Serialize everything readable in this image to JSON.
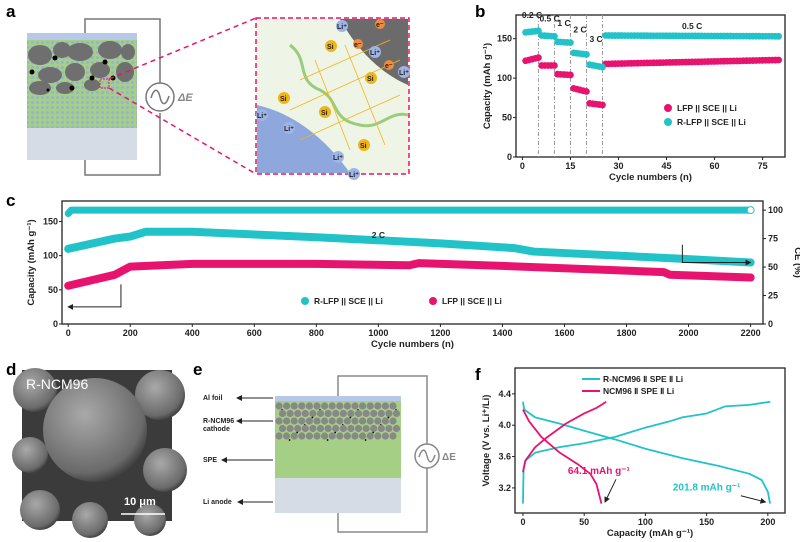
{
  "colors": {
    "pink": "#e8136f",
    "cyan": "#22c3c8",
    "green": "#a5cf85",
    "blue": "#93aee0",
    "gray": "#7a7a7a",
    "anode": "#d6dce6"
  },
  "panels": {
    "a": {
      "label": "a",
      "delta_e": "ΔE",
      "li_label": "Li⁺",
      "e_label": "e⁻",
      "si_label": "Si"
    },
    "d": {
      "label": "d",
      "sample": "R-NCM96",
      "scale_bar": "10 μm"
    },
    "e": {
      "label": "e",
      "delta_e": "ΔE",
      "layers": [
        "Al foil",
        "R-NCM96",
        "cathode",
        "SPE",
        "Li anode"
      ]
    }
  },
  "chart_data": [
    {
      "panel": "b",
      "type": "scatter",
      "xlabel": "Cycle numbers (n)",
      "ylabel": "Capacity (mAh g⁻¹)",
      "xlim": [
        -2,
        82
      ],
      "ylim": [
        0,
        180
      ],
      "xticks": [
        "0",
        "15",
        "30",
        "45",
        "60",
        "75"
      ],
      "yticks": [
        "0",
        "50",
        "100",
        "150"
      ],
      "rate_labels": [
        "0.2 C",
        "0.5 C",
        "1 C",
        "2 C",
        "3 C",
        "0.5 C"
      ],
      "rate_boundaries": [
        5,
        10,
        15,
        20,
        25
      ],
      "legend": "center-right",
      "series": [
        {
          "name": "LFP || SCE || Li",
          "color": "#e8136f",
          "segments": [
            [
              1,
              5,
              122,
              126
            ],
            [
              6,
              10,
              116,
              116
            ],
            [
              11,
              15,
              105,
              104
            ],
            [
              16,
              20,
              87,
              83
            ],
            [
              21,
              25,
              68,
              66
            ],
            [
              26,
              80,
              118,
              123
            ]
          ]
        },
        {
          "name": "R-LFP || SCE || Li",
          "color": "#22c3c8",
          "segments": [
            [
              1,
              5,
              158,
              160
            ],
            [
              6,
              10,
              154,
              153
            ],
            [
              11,
              15,
              146,
              145
            ],
            [
              16,
              20,
              132,
              130
            ],
            [
              21,
              25,
              117,
              114
            ],
            [
              26,
              80,
              154,
              153
            ]
          ]
        }
      ]
    },
    {
      "panel": "c",
      "type": "scatter",
      "xlabel": "Cycle numbers (n)",
      "ylabel": "Capacity (mAh g⁻¹)",
      "ylabel_right": "CE (%)",
      "xlim": [
        -20,
        2240
      ],
      "ylim": [
        0,
        180
      ],
      "ylim_right": [
        0,
        108
      ],
      "xticks": [
        "0",
        "200",
        "400",
        "600",
        "800",
        "1000",
        "1200",
        "1400",
        "1600",
        "1800",
        "2000",
        "2200"
      ],
      "yticks": [
        "0",
        "50",
        "100",
        "150"
      ],
      "yticks_right": [
        "0",
        "25",
        "50",
        "75",
        "100"
      ],
      "annotation": "2 C",
      "legend": "bottom-center",
      "series": [
        {
          "name": "R-LFP || SCE || Li",
          "color": "#22c3c8",
          "points": [
            [
              0,
              110
            ],
            [
              150,
              125
            ],
            [
              200,
              128
            ],
            [
              250,
              135
            ],
            [
              400,
              135
            ],
            [
              800,
              127
            ],
            [
              1200,
              118
            ],
            [
              1440,
              111
            ],
            [
              1500,
              106
            ],
            [
              2000,
              95
            ],
            [
              2200,
              90
            ]
          ]
        },
        {
          "name": "LFP || SCE || Li",
          "color": "#e8136f",
          "points": [
            [
              0,
              56
            ],
            [
              150,
              72
            ],
            [
              200,
              84
            ],
            [
              400,
              88
            ],
            [
              800,
              88
            ],
            [
              1100,
              86
            ],
            [
              1130,
              89
            ],
            [
              1400,
              85
            ],
            [
              1920,
              76
            ],
            [
              1940,
              72
            ],
            [
              2200,
              68
            ]
          ]
        },
        {
          "name": "CE",
          "color": "#22c3c8",
          "axis": "right",
          "points": [
            [
              0,
              97
            ],
            [
              10,
              100
            ],
            [
              2200,
              100
            ]
          ]
        }
      ]
    },
    {
      "panel": "f",
      "type": "line",
      "xlabel": "Capacity (mAh g⁻¹)",
      "ylabel": "Voltage (V vs. Li⁺/Li)",
      "xlim": [
        -6.5,
        214
      ],
      "ylim": [
        2.88,
        4.73
      ],
      "xticks": [
        "0",
        "50",
        "100",
        "150",
        "200"
      ],
      "yticks": [
        "3.2",
        "3.6",
        "4.0",
        "4.4"
      ],
      "legend": "top-left",
      "annotations": [
        "64.1 mAh g⁻¹",
        "201.8 mAh g⁻¹"
      ],
      "series": [
        {
          "name": "R-NCM96 Ⅱ SPE Ⅱ Li",
          "color": "#22c3c8",
          "charge": [
            [
              0,
              3.0
            ],
            [
              0.5,
              3.45
            ],
            [
              2,
              3.55
            ],
            [
              10,
              3.65
            ],
            [
              30,
              3.72
            ],
            [
              50,
              3.77
            ],
            [
              75,
              3.85
            ],
            [
              100,
              3.97
            ],
            [
              120,
              4.05
            ],
            [
              130,
              4.1
            ],
            [
              150,
              4.15
            ],
            [
              165,
              4.24
            ],
            [
              185,
              4.26
            ],
            [
              202,
              4.3
            ]
          ],
          "discharge": [
            [
              0,
              4.3
            ],
            [
              1,
              4.2
            ],
            [
              10,
              4.1
            ],
            [
              30,
              4.02
            ],
            [
              50,
              3.93
            ],
            [
              75,
              3.82
            ],
            [
              100,
              3.7
            ],
            [
              130,
              3.58
            ],
            [
              160,
              3.48
            ],
            [
              185,
              3.38
            ],
            [
              195,
              3.3
            ],
            [
              200,
              3.15
            ],
            [
              201.8,
              3.0
            ]
          ]
        },
        {
          "name": "NCM96 Ⅱ SPE Ⅱ Li",
          "color": "#e8136f",
          "charge": [
            [
              0,
              3.4
            ],
            [
              2,
              3.55
            ],
            [
              10,
              3.72
            ],
            [
              20,
              3.85
            ],
            [
              35,
              4.02
            ],
            [
              50,
              4.15
            ],
            [
              60,
              4.22
            ],
            [
              68,
              4.3
            ]
          ],
          "discharge": [
            [
              0,
              4.2
            ],
            [
              5,
              4.05
            ],
            [
              15,
              3.85
            ],
            [
              30,
              3.65
            ],
            [
              45,
              3.5
            ],
            [
              55,
              3.38
            ],
            [
              60,
              3.25
            ],
            [
              64.1,
              3.0
            ]
          ]
        }
      ]
    }
  ]
}
